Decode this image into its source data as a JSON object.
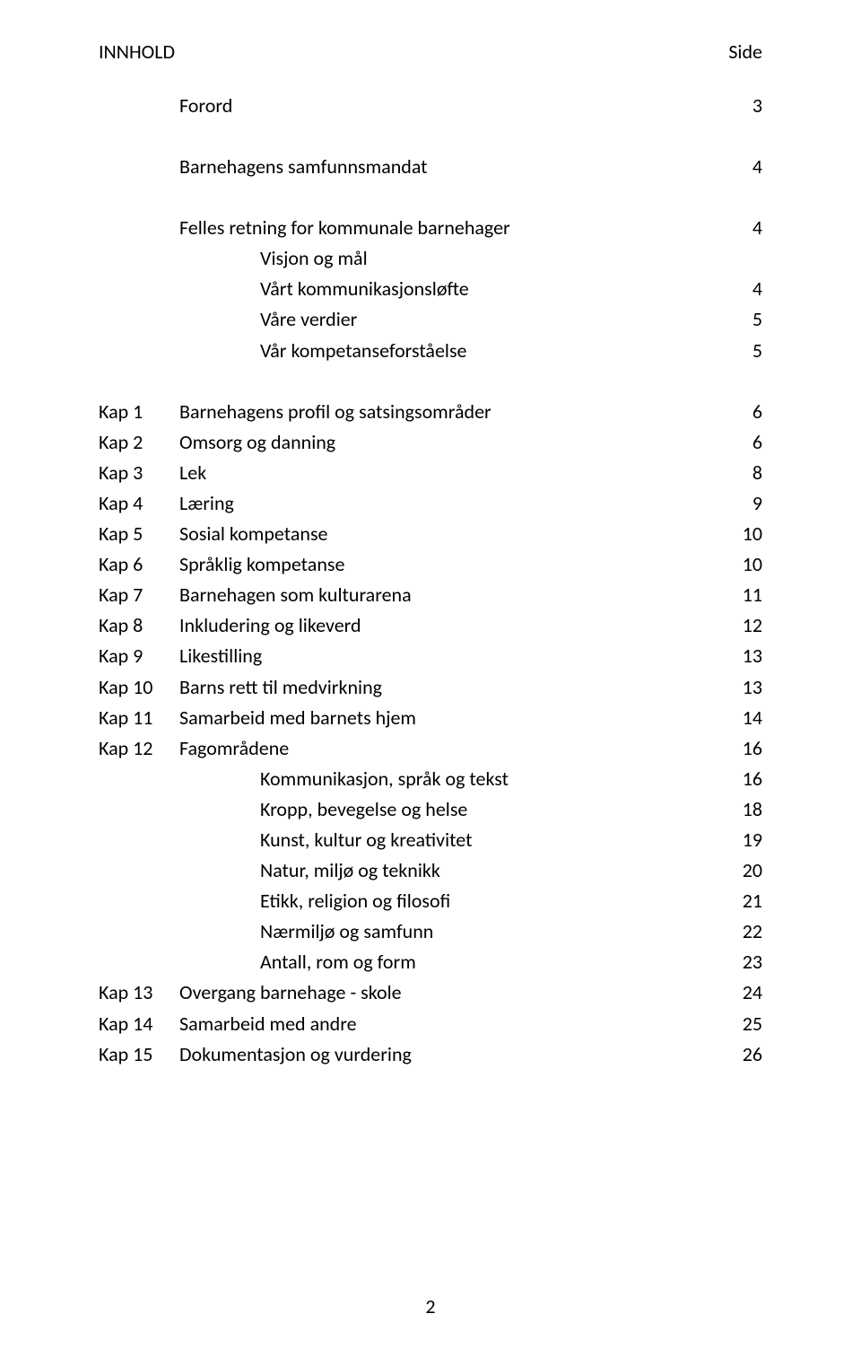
{
  "header": {
    "left": "INNHOLD",
    "right": "Side"
  },
  "section_intro": [
    {
      "label": "Forord",
      "page": "3"
    }
  ],
  "section_felles": {
    "heading": {
      "label": "Felles retning for kommunale barnehager",
      "page": "4"
    },
    "items": [
      {
        "label": "Visjon og mål",
        "page": ""
      },
      {
        "label": "Vårt kommunikasjonsløfte",
        "page": "4"
      },
      {
        "label": "Våre verdier",
        "page": "5"
      },
      {
        "label": "Vår kompetanseforståelse",
        "page": "5"
      }
    ]
  },
  "section_bhg": {
    "heading": {
      "label": "Barnehagens samfunnsmandat",
      "page": "4"
    }
  },
  "chapters": [
    {
      "kap": "Kap 1",
      "label": "Barnehagens profil og satsingsområder",
      "page": "6"
    },
    {
      "kap": "Kap 2",
      "label": "Omsorg og danning",
      "page": "6"
    },
    {
      "kap": "Kap 3",
      "label": "Lek",
      "page": "8"
    },
    {
      "kap": "Kap 4",
      "label": "Læring",
      "page": "9"
    },
    {
      "kap": "Kap 5",
      "label": "Sosial kompetanse",
      "page": "10"
    },
    {
      "kap": "Kap 6",
      "label": "Språklig kompetanse",
      "page": "10"
    },
    {
      "kap": "Kap 7",
      "label": "Barnehagen som kulturarena",
      "page": "11"
    },
    {
      "kap": "Kap 8",
      "label": "Inkludering og likeverd",
      "page": "12"
    },
    {
      "kap": "Kap 9",
      "label": "Likestilling",
      "page": "13"
    },
    {
      "kap": "Kap 10",
      "label": "Barns rett til medvirkning",
      "page": "13"
    },
    {
      "kap": "Kap 11",
      "label": "Samarbeid med barnets hjem",
      "page": "14"
    },
    {
      "kap": "Kap 12",
      "label": "Fagområdene",
      "page": "16"
    }
  ],
  "kap12_sub": [
    {
      "label": "Kommunikasjon, språk og tekst",
      "page": "16"
    },
    {
      "label": "Kropp, bevegelse og helse",
      "page": "18"
    },
    {
      "label": "Kunst, kultur og kreativitet",
      "page": "19"
    },
    {
      "label": "Natur, miljø og teknikk",
      "page": "20"
    },
    {
      "label": "Etikk, religion og filosofi",
      "page": "21"
    },
    {
      "label": "Nærmiljø og samfunn",
      "page": "22"
    },
    {
      "label": "Antall, rom og form",
      "page": "23"
    }
  ],
  "chapters_after": [
    {
      "kap": "Kap 13",
      "label": "Overgang barnehage - skole",
      "page": "24"
    },
    {
      "kap": "Kap 14",
      "label": "Samarbeid med andre",
      "page": "25"
    },
    {
      "kap": "Kap 15",
      "label": "Dokumentasjon og vurdering",
      "page": "26"
    }
  ],
  "page_number": "2"
}
